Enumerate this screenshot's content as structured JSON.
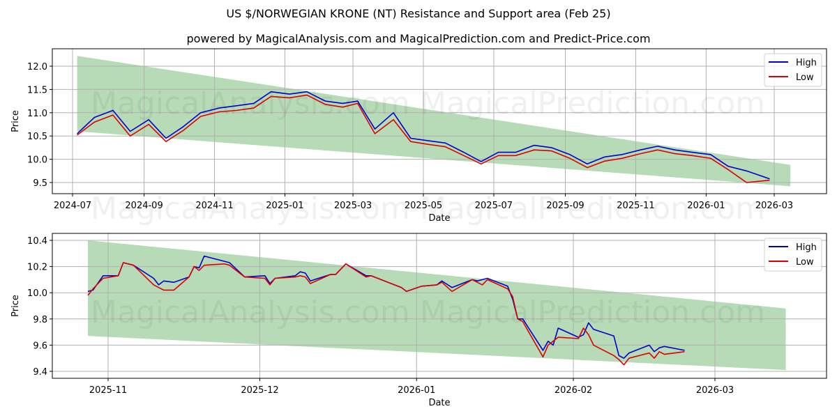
{
  "header": {
    "title": "US $/NORWEGIAN KRONE (NT) Resistance and Support area (Feb 25)",
    "subtitle": "powered by MagicalAnalysis.com and MagicalPrediction.com and Predict-Price.com"
  },
  "watermarks": [
    "MagicalAnalysis.com",
    "MagicalPrediction.com"
  ],
  "colors": {
    "high": "#0000cc",
    "low": "#dd0000",
    "band": "#b6dbb6",
    "grid": "#b0b0b0"
  },
  "legend": {
    "high_label": "High",
    "low_label": "Low"
  },
  "chart_data": [
    {
      "type": "line",
      "title": "US $/NORWEGIAN KRONE (NT) Resistance and Support area (Feb 25)",
      "subtitle": "powered by MagicalAnalysis.com and MagicalPrediction.com and Predict-Price.com",
      "xlabel": "Date",
      "ylabel": "Price",
      "ylim": [
        9.27,
        12.5
      ],
      "yticks": [
        "9.5",
        "10.0",
        "10.5",
        "11.0",
        "11.5",
        "12.0"
      ],
      "xticks": [
        "2024-07",
        "2024-09",
        "2024-11",
        "2025-01",
        "2025-03",
        "2025-05",
        "2025-07",
        "2025-09",
        "2025-11",
        "2026-01",
        "2026-03"
      ],
      "grid": true,
      "legend_position": "upper right",
      "band": {
        "start": "2024-07-05",
        "end": "2026-03-15",
        "upper": [
          12.22,
          9.88
        ],
        "lower": [
          10.6,
          9.42
        ]
      },
      "x": [
        "2024-07-05",
        "2024-07-20",
        "2024-08-05",
        "2024-08-20",
        "2024-09-05",
        "2024-09-20",
        "2024-10-05",
        "2024-10-20",
        "2024-11-05",
        "2024-11-20",
        "2024-12-05",
        "2024-12-20",
        "2025-01-05",
        "2025-01-20",
        "2025-02-05",
        "2025-02-20",
        "2025-03-05",
        "2025-03-20",
        "2025-04-05",
        "2025-04-20",
        "2025-05-05",
        "2025-05-20",
        "2025-06-05",
        "2025-06-20",
        "2025-07-05",
        "2025-07-20",
        "2025-08-05",
        "2025-08-20",
        "2025-09-05",
        "2025-09-20",
        "2025-10-05",
        "2025-10-20",
        "2025-11-05",
        "2025-11-20",
        "2025-12-05",
        "2025-12-20",
        "2026-01-05",
        "2026-01-20",
        "2026-02-05",
        "2026-02-25"
      ],
      "series": [
        {
          "name": "High",
          "values": [
            10.55,
            10.9,
            11.05,
            10.6,
            10.85,
            10.45,
            10.7,
            11.0,
            11.1,
            11.15,
            11.2,
            11.45,
            11.4,
            11.45,
            11.25,
            11.2,
            11.25,
            10.65,
            11.0,
            10.45,
            10.4,
            10.35,
            10.15,
            9.95,
            10.15,
            10.15,
            10.3,
            10.25,
            10.1,
            9.9,
            10.05,
            10.1,
            10.2,
            10.28,
            10.2,
            10.15,
            10.1,
            9.85,
            9.75,
            9.58
          ]
        },
        {
          "name": "Low",
          "values": [
            10.52,
            10.8,
            10.95,
            10.5,
            10.75,
            10.38,
            10.62,
            10.92,
            11.02,
            11.05,
            11.1,
            11.35,
            11.32,
            11.38,
            11.18,
            11.12,
            11.2,
            10.55,
            10.85,
            10.38,
            10.32,
            10.27,
            10.08,
            9.9,
            10.08,
            10.08,
            10.2,
            10.18,
            10.02,
            9.82,
            9.96,
            10.02,
            10.12,
            10.2,
            10.12,
            10.08,
            10.02,
            9.78,
            9.5,
            9.55
          ]
        }
      ]
    },
    {
      "type": "line",
      "xlabel": "Date",
      "ylabel": "Price",
      "ylim": [
        9.38,
        10.46
      ],
      "yticks": [
        "9.4",
        "9.6",
        "9.8",
        "10.0",
        "10.2",
        "10.4"
      ],
      "xticks": [
        "2025-11",
        "2025-12",
        "2026-01",
        "2026-02",
        "2026-03"
      ],
      "grid": true,
      "legend_position": "upper right",
      "band": {
        "start": "2025-10-28",
        "end": "2026-03-15",
        "upper": [
          10.4,
          9.88
        ],
        "lower": [
          9.67,
          9.41
        ]
      },
      "x": [
        "2025-10-28",
        "2025-10-29",
        "2025-10-31",
        "2025-11-03",
        "2025-11-04",
        "2025-11-06",
        "2025-11-10",
        "2025-11-11",
        "2025-11-12",
        "2025-11-14",
        "2025-11-17",
        "2025-11-18",
        "2025-11-19",
        "2025-11-20",
        "2025-11-24",
        "2025-11-25",
        "2025-11-28",
        "2025-12-02",
        "2025-12-03",
        "2025-12-04",
        "2025-12-08",
        "2025-12-09",
        "2025-12-10",
        "2025-12-11",
        "2025-12-15",
        "2025-12-16",
        "2025-12-18",
        "2025-12-22",
        "2025-12-23",
        "2025-12-29",
        "2025-12-30",
        "2026-01-02",
        "2026-01-05",
        "2026-01-06",
        "2026-01-08",
        "2026-01-12",
        "2026-01-13",
        "2026-01-14",
        "2026-01-15",
        "2026-01-19",
        "2026-01-20",
        "2026-01-21",
        "2026-01-22",
        "2026-01-26",
        "2026-01-27",
        "2026-01-28",
        "2026-01-29",
        "2026-02-02",
        "2026-02-03",
        "2026-02-04",
        "2026-02-05",
        "2026-02-09",
        "2026-02-10",
        "2026-02-11",
        "2026-02-12",
        "2026-02-16",
        "2026-02-17",
        "2026-02-18",
        "2026-02-19",
        "2026-02-23"
      ],
      "series": [
        {
          "name": "High",
          "values": [
            10.01,
            10.02,
            10.13,
            10.13,
            10.23,
            10.21,
            10.11,
            10.06,
            10.09,
            10.08,
            10.12,
            10.2,
            10.19,
            10.28,
            10.24,
            10.23,
            10.12,
            10.13,
            10.07,
            10.11,
            10.13,
            10.16,
            10.15,
            10.09,
            10.14,
            10.14,
            10.22,
            10.13,
            10.13,
            10.04,
            10.01,
            10.05,
            10.06,
            10.09,
            10.04,
            10.1,
            10.09,
            10.1,
            10.11,
            10.05,
            9.95,
            9.8,
            9.8,
            9.56,
            9.63,
            9.6,
            9.73,
            9.66,
            9.68,
            9.77,
            9.72,
            9.67,
            9.52,
            9.5,
            9.54,
            9.6,
            9.55,
            9.58,
            9.59,
            9.56
          ]
        },
        {
          "name": "Low",
          "values": [
            9.98,
            10.03,
            10.11,
            10.13,
            10.23,
            10.21,
            10.06,
            10.04,
            10.02,
            10.02,
            10.12,
            10.2,
            10.17,
            10.21,
            10.22,
            10.21,
            10.12,
            10.11,
            10.06,
            10.11,
            10.12,
            10.13,
            10.12,
            10.07,
            10.14,
            10.14,
            10.22,
            10.12,
            10.13,
            10.04,
            10.01,
            10.05,
            10.06,
            10.08,
            10.01,
            10.1,
            10.08,
            10.06,
            10.1,
            10.03,
            9.97,
            9.8,
            9.78,
            9.51,
            9.6,
            9.63,
            9.66,
            9.65,
            9.73,
            9.68,
            9.6,
            9.52,
            9.49,
            9.45,
            9.5,
            9.54,
            9.5,
            9.55,
            9.53,
            9.55
          ]
        }
      ]
    }
  ]
}
